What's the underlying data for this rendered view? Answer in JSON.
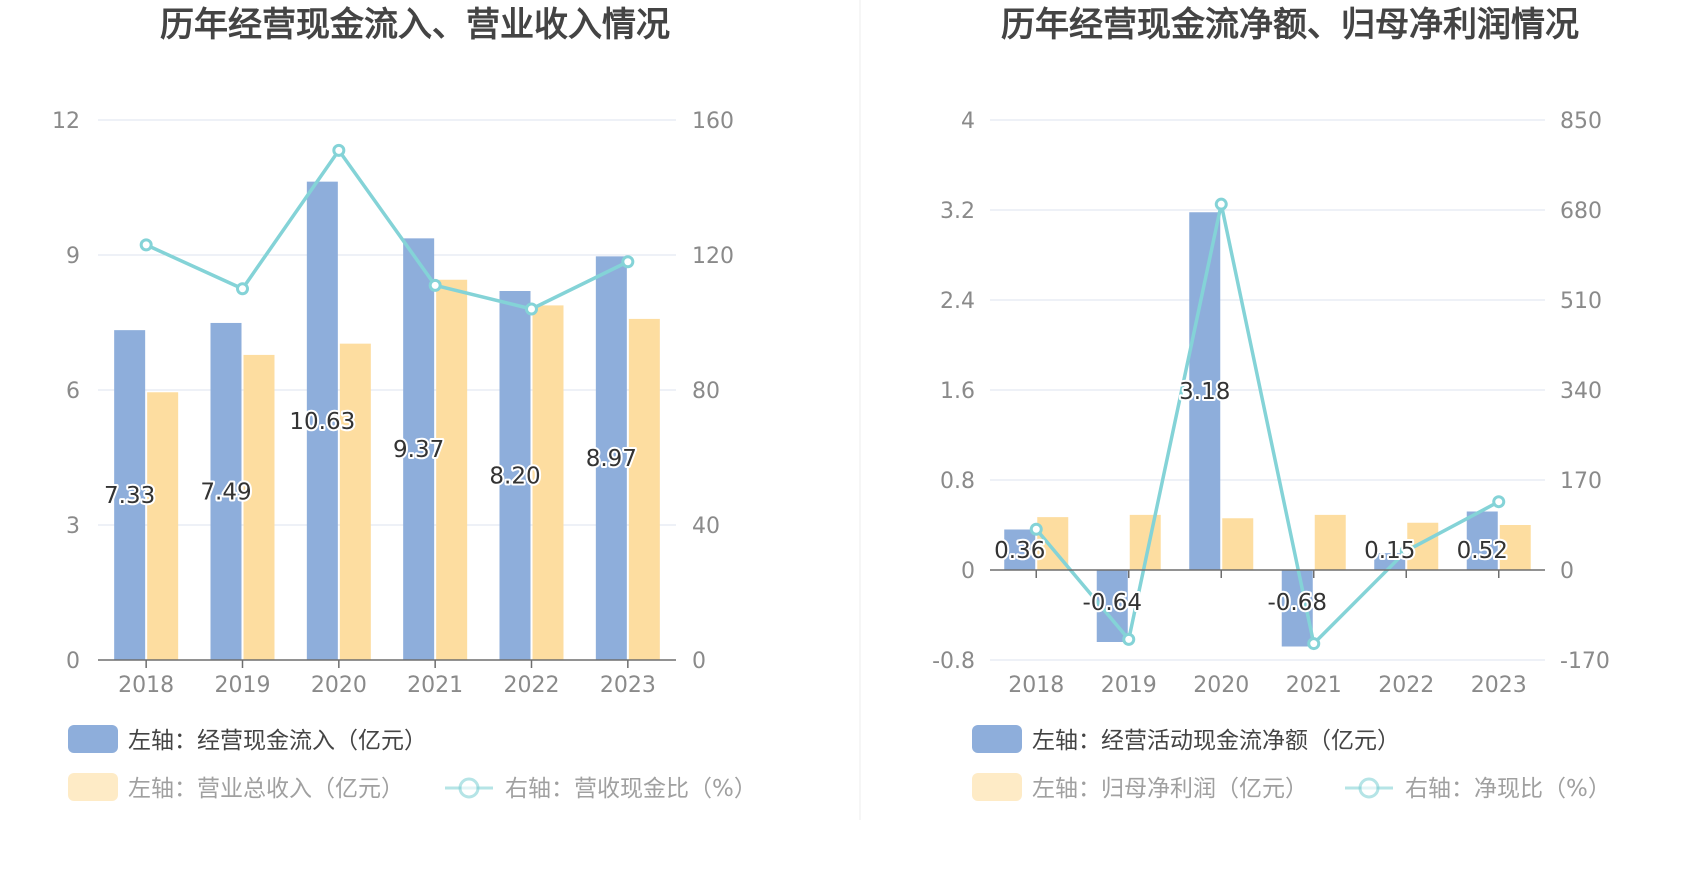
{
  "chart_data": [
    {
      "type": "bar",
      "title": "历年经营现金流入、营业收入情况",
      "categories": [
        "2018",
        "2019",
        "2020",
        "2021",
        "2022",
        "2023"
      ],
      "y_left": {
        "ticks": [
          "0",
          "3",
          "6",
          "9",
          "12"
        ],
        "range": [
          0,
          12
        ]
      },
      "y_right": {
        "ticks": [
          "0",
          "40",
          "80",
          "120",
          "160"
        ],
        "range": [
          0,
          160
        ]
      },
      "grid": true,
      "series": [
        {
          "name": "左轴：经营现金流入（亿元）",
          "type": "bar",
          "axis": "left",
          "color": "#8eaedb",
          "values": [
            7.33,
            7.49,
            10.63,
            9.37,
            8.2,
            8.97
          ],
          "labels": [
            "7.33",
            "7.49",
            "10.63",
            "9.37",
            "8.20",
            "8.97"
          ]
        },
        {
          "name": "左轴：营业总收入（亿元）",
          "type": "bar",
          "axis": "left",
          "color": "#fddda0",
          "values": [
            5.95,
            6.78,
            7.03,
            8.45,
            7.88,
            7.58
          ]
        },
        {
          "name": "右轴：营收现金比（%）",
          "type": "line",
          "axis": "right",
          "color": "#84d3d7",
          "values": [
            123,
            110,
            151,
            111,
            104,
            118
          ]
        }
      ],
      "legend": "bottom-left"
    },
    {
      "type": "bar",
      "title": "历年经营现金流净额、归母净利润情况",
      "categories": [
        "2018",
        "2019",
        "2020",
        "2021",
        "2022",
        "2023"
      ],
      "y_left": {
        "ticks": [
          "-0.8",
          "0",
          "0.8",
          "1.6",
          "2.4",
          "3.2",
          "4"
        ],
        "range": [
          -0.8,
          4
        ]
      },
      "y_right": {
        "ticks": [
          "-170",
          "0",
          "170",
          "340",
          "510",
          "680",
          "850"
        ],
        "range": [
          -170,
          850
        ]
      },
      "grid": true,
      "series": [
        {
          "name": "左轴：经营活动现金流净额（亿元）",
          "type": "bar",
          "axis": "left",
          "color": "#8eaedb",
          "values": [
            0.36,
            -0.64,
            3.18,
            -0.68,
            0.15,
            0.52
          ],
          "labels": [
            "0.36",
            "-0.64",
            "3.18",
            "-0.68",
            "0.15",
            "0.52"
          ]
        },
        {
          "name": "左轴：归母净利润（亿元）",
          "type": "bar",
          "axis": "left",
          "color": "#fddda0",
          "values": [
            0.47,
            0.49,
            0.46,
            0.49,
            0.42,
            0.4
          ]
        },
        {
          "name": "右轴：净现比（%）",
          "type": "line",
          "axis": "right",
          "color": "#84d3d7",
          "values": [
            77,
            -131,
            691,
            -139,
            36,
            129
          ]
        }
      ],
      "legend": "bottom-left"
    }
  ]
}
